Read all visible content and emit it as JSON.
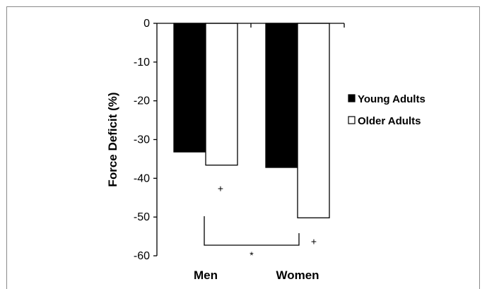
{
  "chart_data": {
    "type": "bar",
    "title": "",
    "xlabel": "",
    "ylabel": "Force Deficit (%)",
    "ylim": [
      -60,
      0
    ],
    "yticks": [
      0,
      -10,
      -20,
      -30,
      -40,
      -50,
      -60
    ],
    "categories": [
      "Men",
      "Women"
    ],
    "series": [
      {
        "name": "Young Adults",
        "values": [
          -33.2,
          -37.2
        ],
        "color": "#000000"
      },
      {
        "name": "Older Adults",
        "values": [
          -36.6,
          -50.2
        ],
        "color": "#ffffff"
      }
    ],
    "legend_position": "right",
    "grid": false,
    "annotations": [
      {
        "text": "+",
        "category": "Men",
        "series": "Older Adults"
      },
      {
        "text": "+",
        "category": "Women",
        "series": "Older Adults"
      },
      {
        "text": "*",
        "type": "bracket",
        "between": [
          "Men",
          "Women"
        ]
      }
    ]
  }
}
